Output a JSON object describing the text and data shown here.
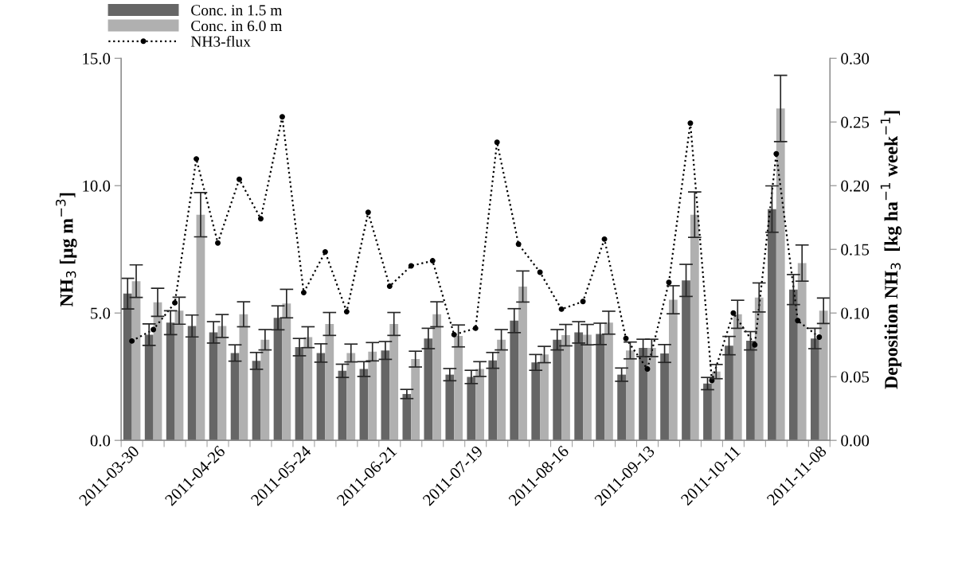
{
  "chart_data": {
    "type": "bar",
    "ylabel": "NH$_{3}$ [µg m$^{−3}$]",
    "y2label": "Deposition NH$_{3}$  [kg ha$^{−1}$ week$^{−1}$]",
    "categories": [
      "2011-03-30",
      null,
      null,
      null,
      "2011-04-26",
      null,
      null,
      null,
      "2011-05-24",
      null,
      null,
      null,
      "2011-06-21",
      null,
      null,
      null,
      "2011-07-19",
      null,
      null,
      null,
      "2011-08-16",
      null,
      null,
      null,
      "2011-09-13",
      null,
      null,
      null,
      "2011-10-11",
      null,
      null,
      null,
      "2011-11-08"
    ],
    "series": [
      {
        "name": "Conc. in 1.5 m",
        "color": "#666666",
        "values": [
          5.76,
          4.15,
          4.62,
          4.49,
          4.24,
          3.43,
          3.12,
          4.81,
          3.66,
          3.43,
          2.73,
          2.8,
          3.53,
          1.82,
          4.0,
          2.58,
          2.49,
          3.14,
          4.7,
          3.06,
          3.95,
          4.24,
          4.18,
          2.58,
          3.63,
          3.41,
          6.28,
          2.23,
          3.72,
          3.91,
          9.08,
          5.92,
          4.0
        ],
        "errors": [
          0.6,
          0.42,
          0.47,
          0.43,
          0.42,
          0.32,
          0.33,
          0.47,
          0.34,
          0.36,
          0.26,
          0.29,
          0.35,
          0.18,
          0.4,
          0.24,
          0.26,
          0.31,
          0.47,
          0.31,
          0.4,
          0.42,
          0.42,
          0.26,
          0.34,
          0.35,
          0.63,
          0.24,
          0.36,
          0.36,
          0.91,
          0.59,
          0.4
        ]
      },
      {
        "name": "Conc. in 6.0 m",
        "color": "#b0b0b0",
        "values": [
          6.25,
          5.42,
          5.09,
          8.86,
          4.49,
          4.95,
          3.95,
          5.37,
          4.05,
          4.57,
          3.43,
          3.48,
          4.57,
          3.19,
          4.95,
          4.1,
          2.8,
          3.95,
          6.04,
          3.37,
          4.13,
          4.15,
          4.62,
          3.53,
          3.63,
          5.52,
          8.86,
          2.7,
          4.95,
          5.61,
          13.03,
          6.96,
          5.09
        ],
        "errors": [
          0.64,
          0.55,
          0.53,
          0.87,
          0.45,
          0.49,
          0.4,
          0.56,
          0.41,
          0.45,
          0.35,
          0.36,
          0.45,
          0.31,
          0.49,
          0.43,
          0.29,
          0.4,
          0.61,
          0.32,
          0.42,
          0.4,
          0.45,
          0.33,
          0.34,
          0.55,
          0.89,
          0.28,
          0.55,
          0.57,
          1.3,
          0.71,
          0.5
        ]
      },
      {
        "name": "NH3-flux",
        "type": "line",
        "axis": "y2",
        "color": "#000000",
        "marker": "circle",
        "line_style": "dotted",
        "values": [
          0.078,
          0.087,
          0.108,
          0.221,
          0.155,
          0.205,
          0.174,
          0.254,
          0.116,
          0.148,
          0.101,
          0.179,
          0.121,
          0.137,
          0.141,
          0.083,
          0.088,
          0.234,
          0.154,
          0.132,
          0.103,
          0.109,
          0.158,
          0.08,
          0.056,
          0.124,
          0.249,
          0.047,
          0.1,
          0.075,
          0.225,
          0.094,
          0.081
        ]
      }
    ],
    "ylim": [
      0,
      15
    ],
    "yticks": [
      {
        "value": 0,
        "label": "0.0"
      },
      {
        "value": 5,
        "label": "5.0"
      },
      {
        "value": 10,
        "label": "10.0"
      },
      {
        "value": 15,
        "label": "15.0"
      }
    ],
    "y2lim": [
      0,
      0.3
    ],
    "y2ticks": [
      {
        "value": 0,
        "label": "0.00"
      },
      {
        "value": 0.05,
        "label": "0.05"
      },
      {
        "value": 0.1,
        "label": "0.10"
      },
      {
        "value": 0.15,
        "label": "0.15"
      },
      {
        "value": 0.2,
        "label": "0.20"
      },
      {
        "value": 0.25,
        "label": "0.25"
      },
      {
        "value": 0.3,
        "label": "0.30"
      }
    ],
    "legend": "top left",
    "grid": false
  }
}
